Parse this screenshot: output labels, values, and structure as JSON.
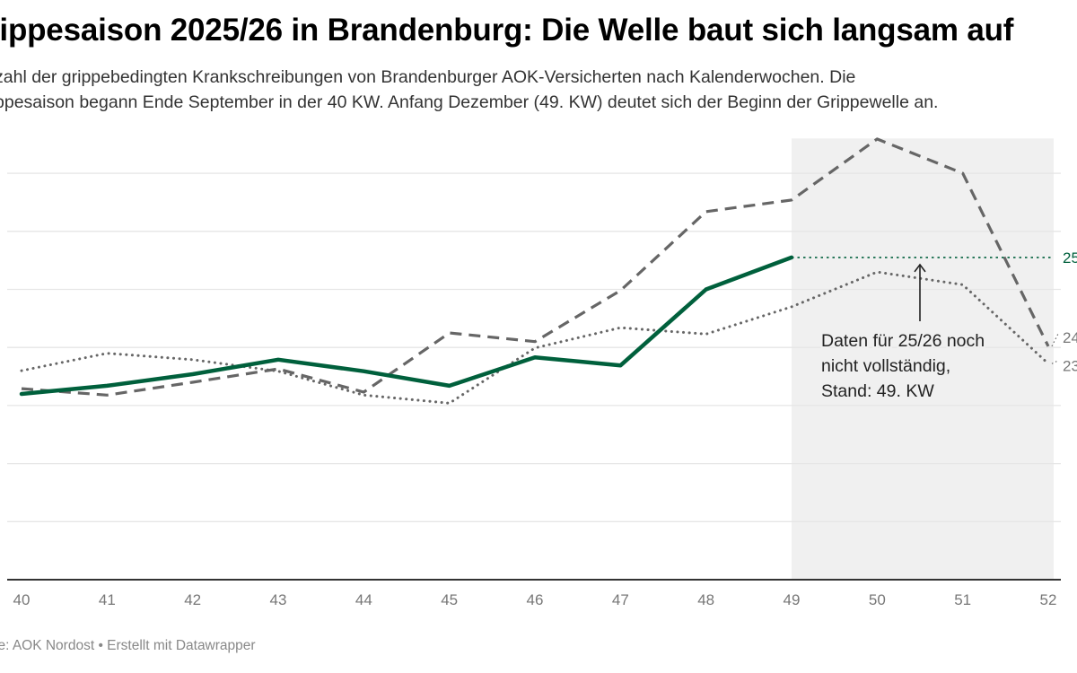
{
  "header": {
    "title": "rippesaison 2025/26 in Brandenburg: Die Welle baut sich langsam auf",
    "subtitle_lines": [
      "zahl der grippebedingten Krankschreibungen von Brandenburger AOK-Versicherten nach Kalenderwochen. Die",
      "ppesaison begann Ende September in der 40 KW. Anfang Dezember (49. KW) deutet sich der Beginn der Grippewelle an."
    ]
  },
  "footer": {
    "source": "le: AOK Nordost • Erstellt mit Datawrapper"
  },
  "colors": {
    "current_season": "#00603c",
    "previous_seasons": "#666666",
    "gridline": "#e6e6e6",
    "highlight_band": "#f0f0f0",
    "axis": "#333333",
    "tick_text": "#777777"
  },
  "chart_data": {
    "type": "line",
    "title": "rippesaison 2025/26 in Brandenburg: Die Welle baut sich langsam auf",
    "xlabel": "",
    "ylabel": "",
    "x": [
      40,
      41,
      42,
      43,
      44,
      45,
      46,
      47,
      48,
      49,
      50,
      51,
      52
    ],
    "x_tick_labels": [
      "40",
      "41",
      "42",
      "43",
      "44",
      "45",
      "46",
      "47",
      "48",
      "49",
      "50",
      "51",
      "52"
    ],
    "y_unit_note": "no y-axis labels shown; values in gridline steps (baseline = 0)",
    "ylim": [
      0,
      7.6
    ],
    "gridlines": [
      1,
      2,
      3,
      4,
      5,
      6,
      7
    ],
    "grid": true,
    "highlight_range_x": [
      49,
      52
    ],
    "series": [
      {
        "name": "25",
        "style": "solid",
        "color": "#00603c",
        "values": [
          3.2,
          3.34,
          3.54,
          3.79,
          3.59,
          3.34,
          3.83,
          3.69,
          5.0,
          5.55,
          null,
          null,
          null
        ],
        "end_label": "25",
        "extension_to_x": 52
      },
      {
        "name": "24",
        "style": "dashed",
        "color": "#666666",
        "values": [
          3.29,
          3.18,
          3.4,
          3.63,
          3.23,
          4.25,
          4.1,
          4.98,
          6.34,
          6.54,
          7.59,
          7.0,
          4.02
        ],
        "end_label": "24"
      },
      {
        "name": "23",
        "style": "dotted",
        "color": "#666666",
        "values": [
          3.6,
          3.9,
          3.79,
          3.59,
          3.18,
          3.04,
          3.99,
          4.34,
          4.23,
          4.7,
          5.3,
          5.08,
          3.72
        ],
        "end_label": "23"
      }
    ],
    "annotation": {
      "lines": [
        "Daten für 25/26 noch",
        "nicht vollständig,",
        "Stand: 49. KW"
      ],
      "arrow_to_x": 50.5
    },
    "legend": "none (line end labels at right)"
  }
}
